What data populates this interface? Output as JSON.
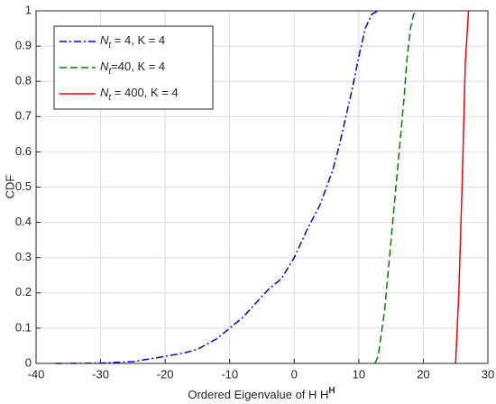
{
  "chart_data": {
    "type": "line",
    "xlabel": "Ordered Eigenvalue of H HH",
    "ylabel": "CDF",
    "xlim": [
      -40,
      30
    ],
    "xticks": [
      -40,
      -30,
      -20,
      -10,
      0,
      10,
      20,
      30
    ],
    "ylim": [
      0,
      1
    ],
    "yticks": [
      0,
      0.1,
      0.2,
      0.3,
      0.4,
      0.5,
      0.6,
      0.7,
      0.8,
      0.9,
      1
    ],
    "grid": true,
    "legend": "upper left",
    "series": [
      {
        "name": "Nt = 4,  K = 4",
        "color": "#0000ff",
        "linestyle": "-.",
        "x": [
          -37,
          -30,
          -25,
          -20,
          -17,
          -15,
          -12,
          -10,
          -8,
          -6,
          -4,
          -2,
          0,
          2,
          4,
          5,
          6,
          7,
          8,
          9,
          10,
          11,
          12,
          13
        ],
        "values": [
          0,
          0.001,
          0.005,
          0.02,
          0.03,
          0.04,
          0.07,
          0.1,
          0.13,
          0.17,
          0.21,
          0.24,
          0.3,
          0.38,
          0.45,
          0.5,
          0.55,
          0.62,
          0.7,
          0.78,
          0.87,
          0.95,
          0.99,
          1
        ]
      },
      {
        "name": "Nt=40,  K = 4",
        "color": "#008000",
        "linestyle": "--",
        "x": [
          12.5,
          13,
          14,
          15,
          16,
          17,
          17.5,
          18,
          18.5,
          19
        ],
        "values": [
          0,
          0.02,
          0.15,
          0.35,
          0.55,
          0.75,
          0.87,
          0.95,
          0.99,
          1
        ]
      },
      {
        "name": "Nt = 400,  K = 4",
        "color": "#ff0000",
        "linestyle": "-",
        "x": [
          25,
          25.5,
          26,
          26.5,
          27
        ],
        "values": [
          0,
          0.2,
          0.5,
          0.85,
          1
        ]
      }
    ]
  }
}
